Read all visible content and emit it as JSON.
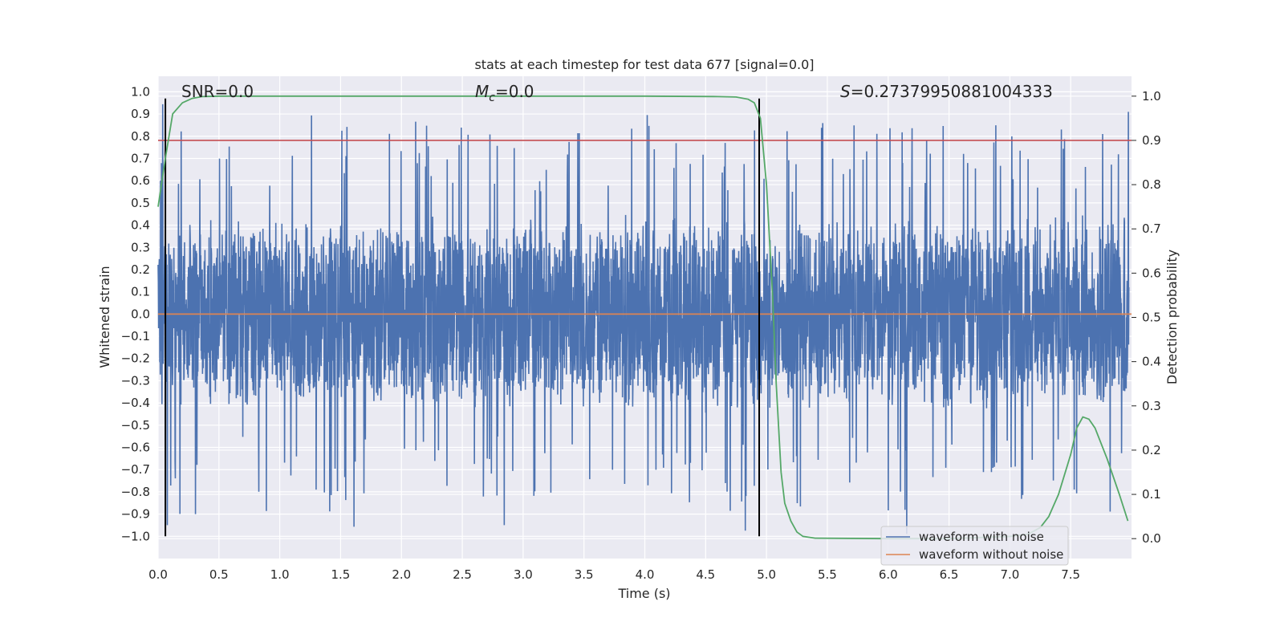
{
  "chart_data": {
    "type": "line",
    "title": "stats at each timestep for test data 677 [signal=0.0]",
    "xlabel": "Time (s)",
    "ylabel": "Whitened strain",
    "y2label": "Detection probability",
    "xlim": [
      0.0,
      8.0
    ],
    "ylim": [
      -1.1,
      1.07
    ],
    "y2lim": [
      -0.045,
      1.045
    ],
    "xticks": [
      "0.0",
      "0.5",
      "1.0",
      "1.5",
      "2.0",
      "2.5",
      "3.0",
      "3.5",
      "4.0",
      "4.5",
      "5.0",
      "5.5",
      "6.0",
      "6.5",
      "7.0",
      "7.5"
    ],
    "yticks": [
      "1.0",
      "0.9",
      "0.8",
      "0.7",
      "0.6",
      "0.5",
      "0.4",
      "0.3",
      "0.2",
      "0.1",
      "0.0",
      "-0.1",
      "-0.2",
      "-0.3",
      "-0.4",
      "-0.5",
      "-0.6",
      "-0.7",
      "-0.8",
      "-0.9",
      "-1.0"
    ],
    "y2ticks": [
      "1.0",
      "0.9",
      "0.8",
      "0.7",
      "0.6",
      "0.5",
      "0.4",
      "0.3",
      "0.2",
      "0.1",
      "0.0"
    ],
    "grid": true,
    "legend_position": "lower-right",
    "annotations": {
      "snr": "SNR=0.0",
      "mc_symbol": "M",
      "mc_sub": "c",
      "mc_value": "=0.0",
      "s_symbol": "S",
      "s_value": "=0.27379950881004333"
    },
    "threshold_line": {
      "axis": "y2",
      "value": 0.9,
      "color": "#c44e52"
    },
    "vertical_lines": [
      0.06,
      4.94
    ],
    "noise_waveform": {
      "name": "waveform with noise",
      "color": "#4c72b0",
      "typical_envelope": 0.45,
      "extreme_peaks": [
        0.96,
        -1.0
      ]
    },
    "clean_waveform": {
      "name": "waveform without noise",
      "color": "#dd8452",
      "value": 0.0
    },
    "probability_series": {
      "axis": "y2",
      "color": "#55a868",
      "x": [
        0.0,
        0.06,
        0.12,
        0.2,
        0.28,
        0.36,
        0.5,
        1.0,
        2.0,
        3.0,
        4.0,
        4.6,
        4.75,
        4.85,
        4.9,
        4.95,
        5.0,
        5.05,
        5.08,
        5.12,
        5.15,
        5.2,
        5.25,
        5.3,
        5.4,
        6.0,
        6.5,
        7.0,
        7.15,
        7.25,
        7.32,
        7.4,
        7.5,
        7.55,
        7.6,
        7.65,
        7.7,
        7.8,
        7.9,
        7.97
      ],
      "y": [
        0.75,
        0.86,
        0.96,
        0.985,
        0.995,
        0.999,
        1.0,
        1.0,
        1.0,
        1.0,
        1.0,
        0.999,
        0.998,
        0.993,
        0.985,
        0.95,
        0.8,
        0.55,
        0.35,
        0.15,
        0.08,
        0.04,
        0.015,
        0.005,
        0.001,
        0.0,
        0.0,
        0.005,
        0.01,
        0.025,
        0.05,
        0.1,
        0.19,
        0.25,
        0.275,
        0.27,
        0.25,
        0.18,
        0.1,
        0.04
      ]
    },
    "series": [
      {
        "name": "waveform with noise",
        "color": "#4c72b0"
      },
      {
        "name": "waveform without noise",
        "color": "#dd8452"
      }
    ]
  }
}
